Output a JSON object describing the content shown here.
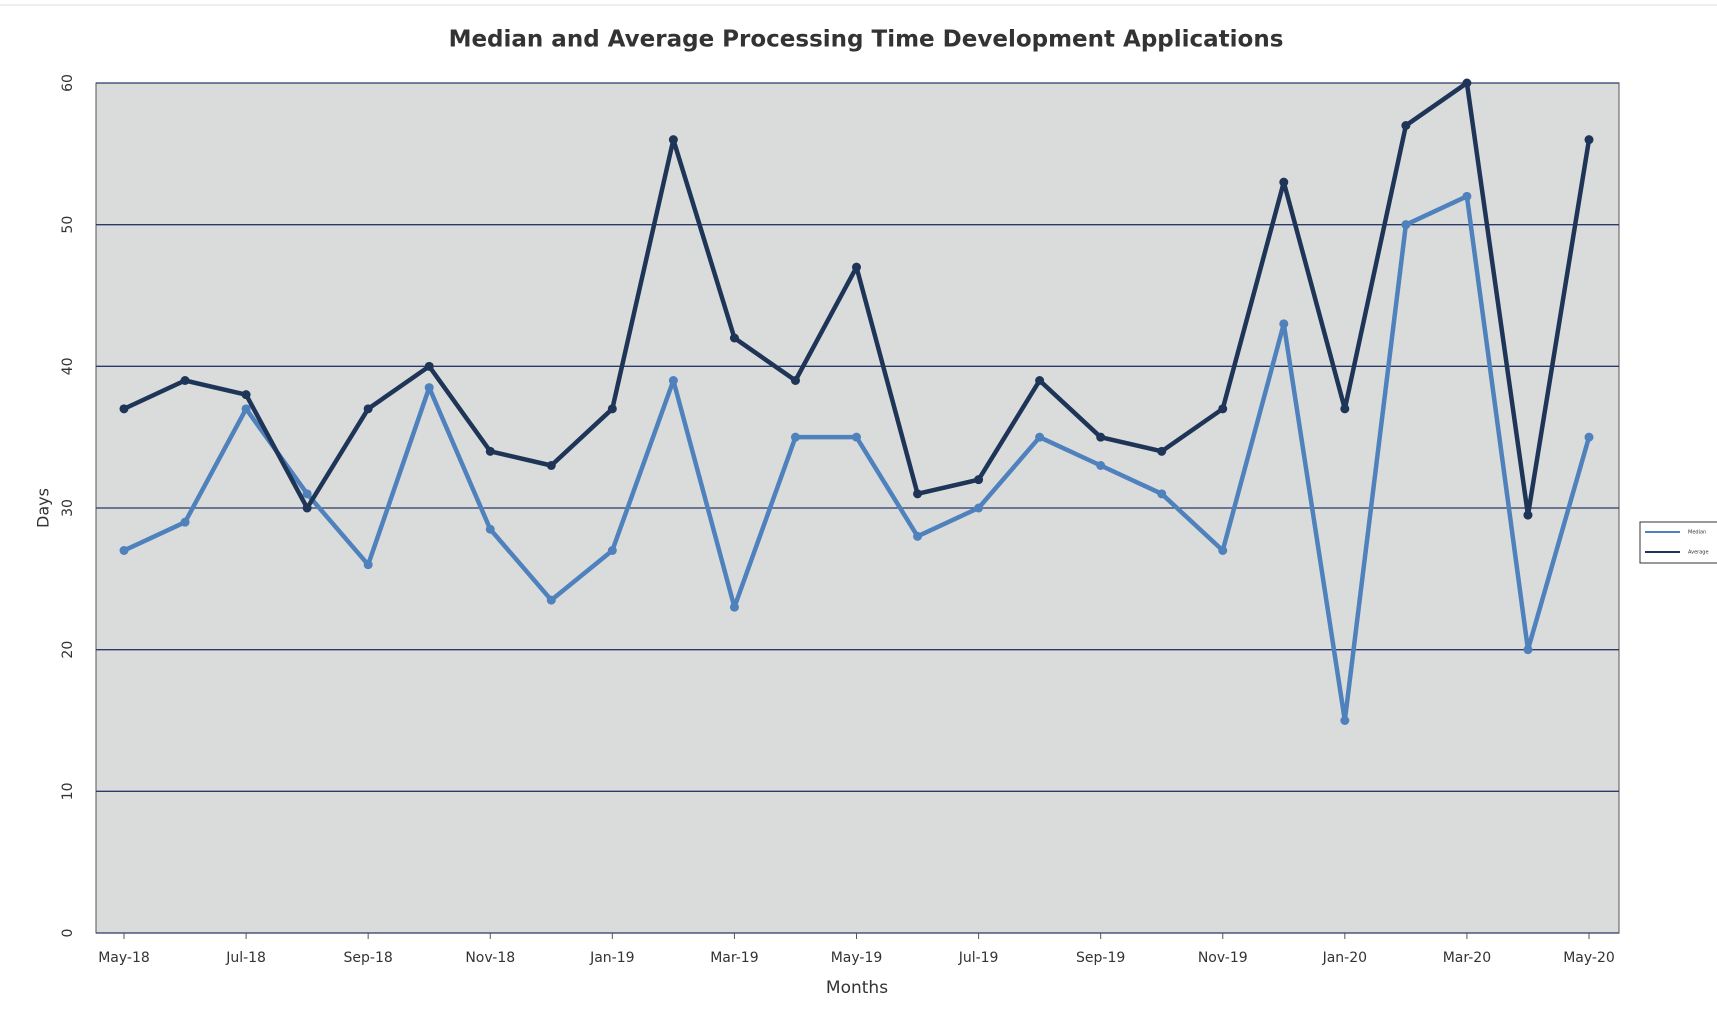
{
  "chart_data": {
    "type": "line",
    "title": "Median and Average Processing Time Development Applications",
    "x_label": "Months",
    "y_label": "Days",
    "categories": [
      "May-18",
      null,
      "Jul-18",
      null,
      "Sep-18",
      null,
      "Nov-18",
      null,
      "Jan-19",
      null,
      "Mar-19",
      null,
      "May-19",
      null,
      "Jul-19",
      null,
      "Sep-19",
      null,
      "Nov-19",
      null,
      "Jan-20",
      null,
      "Mar-20",
      null,
      "May-20"
    ],
    "series": [
      {
        "name": "Median",
        "color": "#4f81bd",
        "values": [
          27,
          29,
          37,
          31,
          26,
          38.5,
          28.5,
          23.5,
          27,
          39,
          23,
          35,
          35,
          28,
          30,
          35,
          33,
          31,
          27,
          43,
          15,
          50,
          52,
          20,
          35
        ]
      },
      {
        "name": "Average",
        "color": "#1f3558",
        "values": [
          37,
          39,
          38,
          30,
          37,
          40,
          34,
          33,
          37,
          56,
          42,
          39,
          47,
          31,
          32,
          39,
          35,
          34,
          37,
          53,
          37,
          57,
          60,
          29.5,
          56
        ]
      }
    ],
    "ylim": [
      0,
      60
    ],
    "yticks": [
      0,
      10,
      20,
      30,
      40,
      50,
      60
    ],
    "grid": true,
    "legend": "right"
  }
}
